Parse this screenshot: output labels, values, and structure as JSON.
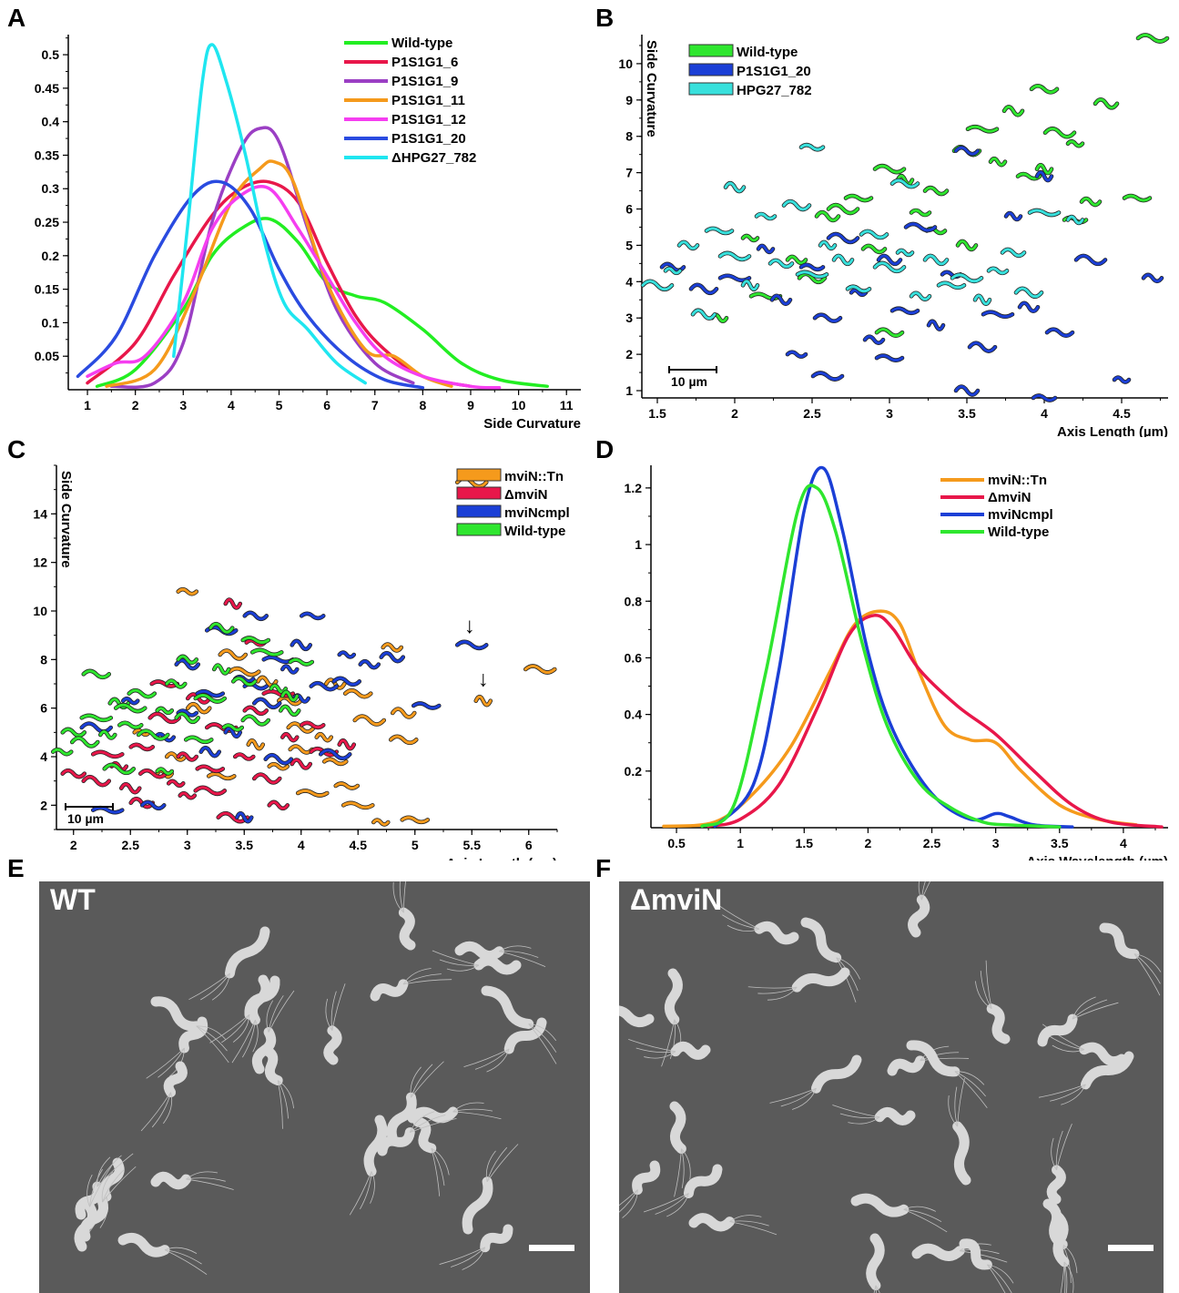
{
  "panels": {
    "a": {
      "letter": "A"
    },
    "b": {
      "letter": "B"
    },
    "c": {
      "letter": "C"
    },
    "d": {
      "letter": "D"
    },
    "e": {
      "letter": "E",
      "label": "WT"
    },
    "f": {
      "letter": "F",
      "label": "ΔmviN"
    }
  },
  "chart_data": [
    {
      "id": "A",
      "type": "line",
      "xlabel": "Side Curvature",
      "ylabel": "",
      "xlim": [
        0.6,
        11.3
      ],
      "ylim": [
        0,
        0.53
      ],
      "xticks": [
        1,
        2,
        3,
        4,
        5,
        6,
        7,
        8,
        9,
        10,
        11
      ],
      "yticks": [
        0.05,
        0.1,
        0.15,
        0.2,
        0.25,
        0.3,
        0.35,
        0.4,
        0.45,
        0.5
      ],
      "legend_position": "top-right",
      "series": [
        {
          "name": "Wild-type",
          "color": "#22ee22",
          "x": [
            1.2,
            2,
            3,
            3.6,
            4.2,
            4.8,
            5.4,
            6,
            6.6,
            7.2,
            8,
            8.8,
            9.6,
            10.6
          ],
          "y": [
            0.005,
            0.03,
            0.12,
            0.2,
            0.24,
            0.255,
            0.22,
            0.16,
            0.14,
            0.13,
            0.09,
            0.04,
            0.015,
            0.005
          ]
        },
        {
          "name": "P1S1G1_6",
          "color": "#e8174a",
          "x": [
            1,
            2,
            2.8,
            3.6,
            4.2,
            4.8,
            5.4,
            6,
            6.6,
            7.2,
            8,
            9
          ],
          "y": [
            0.01,
            0.07,
            0.17,
            0.26,
            0.3,
            0.31,
            0.28,
            0.19,
            0.11,
            0.06,
            0.02,
            0.005
          ]
        },
        {
          "name": "P1S1G1_9",
          "color": "#9b3fc4",
          "x": [
            1.5,
            2.4,
            3,
            3.6,
            4.2,
            4.6,
            5,
            5.6,
            6.2,
            7,
            7.8
          ],
          "y": [
            0.005,
            0.01,
            0.07,
            0.25,
            0.36,
            0.39,
            0.37,
            0.24,
            0.12,
            0.04,
            0.01
          ]
        },
        {
          "name": "P1S1G1_11",
          "color": "#f59a1c",
          "x": [
            1.4,
            2.4,
            3.2,
            4,
            4.6,
            4.9,
            5.3,
            6,
            6.8,
            7.4,
            8,
            8.6
          ],
          "y": [
            0.005,
            0.03,
            0.14,
            0.28,
            0.33,
            0.34,
            0.31,
            0.16,
            0.06,
            0.05,
            0.02,
            0.005
          ]
        },
        {
          "name": "P1S1G1_12",
          "color": "#f53ef0",
          "x": [
            1,
            1.6,
            2.2,
            3,
            3.6,
            4.2,
            4.8,
            5.4,
            6,
            6.6,
            7.2,
            8,
            9,
            9.6
          ],
          "y": [
            0.02,
            0.04,
            0.05,
            0.13,
            0.24,
            0.29,
            0.3,
            0.24,
            0.17,
            0.1,
            0.05,
            0.02,
            0.005,
            0.003
          ]
        },
        {
          "name": "P1S1G1_20",
          "color": "#2a4be0",
          "x": [
            0.8,
            1.6,
            2.4,
            3.2,
            3.8,
            4.4,
            5,
            5.6,
            6.4,
            7.2,
            8
          ],
          "y": [
            0.02,
            0.08,
            0.2,
            0.29,
            0.31,
            0.27,
            0.18,
            0.11,
            0.05,
            0.015,
            0.003
          ]
        },
        {
          "name": "ΔHPG27_782",
          "color": "#1fe6f0",
          "x": [
            2.8,
            3.1,
            3.4,
            3.6,
            3.9,
            4.3,
            4.7,
            5.1,
            5.6,
            6.2,
            6.8
          ],
          "y": [
            0.05,
            0.25,
            0.46,
            0.515,
            0.46,
            0.35,
            0.22,
            0.13,
            0.09,
            0.04,
            0.01
          ]
        }
      ]
    },
    {
      "id": "B",
      "type": "scatter",
      "xlabel": "Axis Length (µm)",
      "ylabel": "Side Curvature",
      "xlim": [
        1.4,
        4.8
      ],
      "ylim": [
        0.8,
        10.8
      ],
      "xticks": [
        1.5,
        2,
        2.5,
        3,
        3.5,
        4,
        4.5
      ],
      "yticks": [
        1,
        2,
        3,
        4,
        5,
        6,
        7,
        8,
        9,
        10
      ],
      "scalebar_label": "10 µm",
      "legend_position": "top-left",
      "series": [
        {
          "name": "Wild-type",
          "color": "#2fe62f",
          "x": [
            2.1,
            2.4,
            2.6,
            2.8,
            3.0,
            3.1,
            3.2,
            3.3,
            3.5,
            3.6,
            3.7,
            3.8,
            3.9,
            4.0,
            4.1,
            4.2,
            4.3,
            4.4,
            4.6,
            4.7,
            4.0,
            3.3,
            2.9,
            2.5,
            2.2,
            1.9,
            3.5,
            4.2,
            3.0,
            2.7
          ],
          "y": [
            5.2,
            4.6,
            5.8,
            6.3,
            7.1,
            6.8,
            5.9,
            6.5,
            7.6,
            8.2,
            7.3,
            8.7,
            6.9,
            9.3,
            8.1,
            7.8,
            6.2,
            8.9,
            6.3,
            10.7,
            7.1,
            5.4,
            4.9,
            4.1,
            3.6,
            3.0,
            5.0,
            5.7,
            2.6,
            6.0
          ]
        },
        {
          "name": "P1S1G1_20",
          "color": "#1b3fd6",
          "x": [
            1.6,
            1.8,
            2.0,
            2.2,
            2.3,
            2.5,
            2.6,
            2.7,
            2.8,
            2.9,
            3.0,
            3.1,
            3.2,
            3.3,
            3.4,
            3.5,
            3.6,
            3.7,
            3.8,
            3.9,
            4.0,
            4.1,
            4.3,
            4.5,
            4.7,
            3.5,
            3.0,
            2.6,
            4.0,
            2.4
          ],
          "y": [
            4.4,
            3.8,
            4.1,
            4.9,
            3.5,
            4.4,
            3.0,
            5.2,
            3.7,
            2.4,
            4.6,
            3.2,
            5.5,
            2.8,
            4.2,
            7.6,
            2.2,
            3.1,
            5.8,
            3.3,
            0.8,
            2.6,
            4.6,
            1.3,
            4.1,
            1.0,
            1.9,
            1.4,
            6.9,
            2.0
          ]
        },
        {
          "name": "HPG27_782",
          "color": "#38e0dc",
          "x": [
            1.5,
            1.6,
            1.7,
            1.8,
            1.9,
            2.0,
            2.1,
            2.2,
            2.3,
            2.4,
            2.5,
            2.6,
            2.7,
            2.8,
            2.9,
            3.0,
            3.1,
            3.2,
            3.3,
            3.4,
            3.5,
            3.6,
            3.7,
            3.8,
            3.9,
            4.0,
            4.2,
            2.0,
            2.5,
            3.1
          ],
          "y": [
            3.9,
            4.3,
            5.0,
            3.1,
            5.4,
            4.7,
            3.9,
            5.8,
            4.5,
            6.1,
            4.2,
            5.0,
            4.6,
            3.8,
            5.3,
            4.4,
            4.8,
            3.6,
            4.6,
            3.9,
            4.1,
            3.5,
            4.3,
            4.8,
            3.7,
            5.9,
            5.7,
            6.6,
            7.7,
            6.7
          ]
        }
      ]
    },
    {
      "id": "C",
      "type": "scatter",
      "xlabel": "Axis Length (µm)",
      "ylabel": "Side Curvature",
      "xlim": [
        1.85,
        6.25
      ],
      "ylim": [
        1,
        16
      ],
      "xticks": [
        2,
        2.5,
        3,
        3.5,
        4,
        4.5,
        5,
        5.5,
        6
      ],
      "yticks": [
        2,
        4,
        6,
        8,
        10,
        12,
        14
      ],
      "scalebar_label": "10 µm",
      "legend_position": "top-right",
      "annotations": [
        "↓",
        "↓"
      ],
      "series": [
        {
          "name": "mviN::Tn",
          "color": "#f59a1c",
          "x": [
            2.6,
            2.9,
            3.1,
            3.3,
            3.5,
            3.6,
            3.8,
            3.9,
            4.0,
            4.1,
            4.2,
            4.3,
            4.4,
            4.5,
            4.6,
            4.7,
            4.8,
            4.9,
            5.0,
            6.1,
            5.6,
            3.0,
            4.0,
            3.4,
            4.5,
            2.8,
            3.7,
            4.3,
            4.9,
            5.5
          ],
          "y": [
            5.0,
            4.0,
            6.0,
            3.2,
            7.5,
            4.5,
            3.6,
            6.3,
            5.2,
            2.5,
            4.8,
            7.0,
            2.8,
            6.6,
            5.5,
            1.3,
            8.5,
            5.8,
            1.4,
            7.6,
            6.3,
            10.8,
            4.3,
            8.2,
            2.0,
            3.3,
            7.1,
            3.8,
            4.7,
            15.3
          ]
        },
        {
          "name": "ΔmviN",
          "color": "#e8174a",
          "x": [
            2.0,
            2.2,
            2.3,
            2.4,
            2.5,
            2.6,
            2.7,
            2.8,
            2.9,
            3.0,
            3.1,
            3.2,
            3.3,
            3.4,
            3.5,
            3.6,
            3.7,
            3.8,
            3.9,
            4.0,
            4.1,
            4.2,
            3.4,
            3.0,
            3.8,
            2.6,
            2.8,
            3.2,
            4.4,
            3.6
          ],
          "y": [
            3.3,
            3.0,
            4.1,
            3.6,
            2.7,
            4.4,
            3.3,
            5.6,
            2.9,
            4.0,
            6.4,
            3.5,
            5.2,
            10.3,
            4.0,
            5.9,
            3.1,
            6.6,
            4.8,
            3.7,
            5.3,
            4.2,
            1.5,
            2.4,
            2.0,
            2.1,
            7.0,
            2.6,
            4.5,
            8.7
          ]
        },
        {
          "name": "mviNcmpl",
          "color": "#1b3fd6",
          "x": [
            2.2,
            2.5,
            2.8,
            3.0,
            3.2,
            3.3,
            3.4,
            3.5,
            3.6,
            3.7,
            3.8,
            3.9,
            4.0,
            4.1,
            4.2,
            4.3,
            4.4,
            4.6,
            4.8,
            5.1,
            5.5,
            3.5,
            3.0,
            2.7,
            3.8,
            2.3,
            4.0,
            3.2,
            3.6,
            4.4
          ],
          "y": [
            5.2,
            6.3,
            4.8,
            7.8,
            6.6,
            9.2,
            5.0,
            7.2,
            9.8,
            6.2,
            8.0,
            7.6,
            8.6,
            9.8,
            6.9,
            4.1,
            8.2,
            7.8,
            8.1,
            6.1,
            8.6,
            1.5,
            5.8,
            2.0,
            3.9,
            1.8,
            6.4,
            4.2,
            6.9,
            7.1
          ]
        },
        {
          "name": "Wild-type",
          "color": "#2fe62f",
          "x": [
            1.9,
            2.0,
            2.1,
            2.2,
            2.3,
            2.4,
            2.5,
            2.6,
            2.7,
            2.8,
            2.9,
            3.0,
            3.1,
            3.2,
            3.3,
            3.4,
            3.5,
            3.6,
            3.7,
            3.8,
            3.9,
            4.0,
            2.2,
            2.4,
            2.8,
            3.0,
            3.3,
            3.6,
            2.5,
            3.9
          ],
          "y": [
            4.2,
            5.0,
            4.6,
            5.6,
            4.9,
            6.2,
            5.3,
            6.6,
            4.9,
            5.9,
            7.0,
            5.6,
            4.7,
            6.4,
            7.6,
            5.2,
            7.1,
            5.5,
            8.3,
            6.8,
            5.9,
            7.9,
            7.4,
            3.5,
            3.4,
            8.0,
            9.3,
            8.8,
            6.0,
            6.5
          ]
        }
      ]
    },
    {
      "id": "D",
      "type": "line",
      "xlabel": "Axis Wavelength (µm)",
      "ylabel": "",
      "xlim": [
        0.3,
        4.35
      ],
      "ylim": [
        0,
        1.28
      ],
      "xticks": [
        0.5,
        1,
        1.5,
        2,
        2.5,
        3,
        3.5,
        4
      ],
      "yticks": [
        0.2,
        0.4,
        0.6,
        0.8,
        1,
        1.2
      ],
      "legend_position": "top-right",
      "series": [
        {
          "name": "mviN::Tn",
          "color": "#f59a1c",
          "x": [
            0.4,
            0.8,
            1.1,
            1.4,
            1.7,
            1.9,
            2.1,
            2.25,
            2.4,
            2.6,
            2.8,
            3.0,
            3.2,
            3.5,
            3.8,
            4.1
          ],
          "y": [
            0.005,
            0.02,
            0.12,
            0.29,
            0.55,
            0.72,
            0.765,
            0.72,
            0.55,
            0.36,
            0.31,
            0.3,
            0.2,
            0.08,
            0.03,
            0.01
          ]
        },
        {
          "name": "ΔmviN",
          "color": "#e8174a",
          "x": [
            0.75,
            1.0,
            1.3,
            1.6,
            1.85,
            2.05,
            2.2,
            2.4,
            2.7,
            3.0,
            3.3,
            3.6,
            3.9,
            4.3
          ],
          "y": [
            0.005,
            0.03,
            0.15,
            0.42,
            0.68,
            0.75,
            0.7,
            0.56,
            0.43,
            0.33,
            0.2,
            0.08,
            0.02,
            0.003
          ]
        },
        {
          "name": "mviNcmpl",
          "color": "#1b3fd6",
          "x": [
            0.8,
            1.1,
            1.3,
            1.5,
            1.65,
            1.8,
            2.0,
            2.2,
            2.5,
            2.8,
            3.0,
            3.1,
            3.3,
            3.6
          ],
          "y": [
            0.005,
            0.15,
            0.55,
            1.12,
            1.27,
            1.05,
            0.62,
            0.34,
            0.12,
            0.03,
            0.05,
            0.04,
            0.01,
            0.003
          ]
        },
        {
          "name": "Wild-type",
          "color": "#2fe62f",
          "x": [
            0.7,
            0.95,
            1.2,
            1.45,
            1.6,
            1.75,
            1.95,
            2.15,
            2.4,
            2.65,
            2.9,
            3.1,
            3.5
          ],
          "y": [
            0.005,
            0.08,
            0.55,
            1.12,
            1.2,
            1.04,
            0.66,
            0.36,
            0.16,
            0.07,
            0.02,
            0.01,
            0.003
          ]
        }
      ]
    }
  ]
}
